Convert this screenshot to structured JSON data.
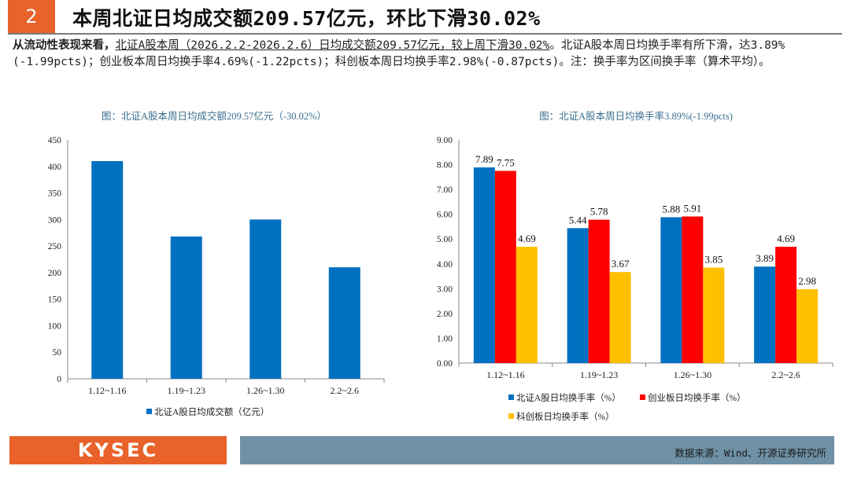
{
  "header": {
    "number": "2",
    "title": "本周北证日均成交额209.57亿元，环比下滑30.02%"
  },
  "summary": {
    "lead": "从流动性表现来看，",
    "underlined": "北证A股本周（2026.2.2-2026.2.6）日均成交额209.57亿元，较上周下滑30.02%",
    "rest": "。北证A股本周日均换手率有所下滑，达3.89%(-1.99pcts)；创业板本周日均换手率4.69%(-1.22pcts)；科创板本周日均换手率2.98%(-0.87pcts)。注：换手率为区间换手率（算术平均）。"
  },
  "colors": {
    "accent": "#e8622a",
    "blue": "#0070c0",
    "red": "#ff0000",
    "yellow": "#ffc000",
    "footer": "#6f91a5"
  },
  "chart_data": [
    {
      "type": "bar",
      "title": "图：北证A股本周日均成交额209.57亿元（-30.02%）",
      "categories": [
        "1.12~1.16",
        "1.19~1.23",
        "1.26~1.30",
        "2.2~2.6"
      ],
      "series": [
        {
          "name": "北证A股日均成交额（亿元）",
          "values": [
            410,
            268,
            300,
            210
          ]
        }
      ],
      "ylim": [
        0,
        450
      ],
      "yticks": [
        "0",
        "50",
        "100",
        "150",
        "200",
        "250",
        "300",
        "350",
        "400",
        "450"
      ],
      "legend": "bottom"
    },
    {
      "type": "bar",
      "title": "图：北证A股本周日均换手率3.89%(-1.99pcts)",
      "categories": [
        "1.12~1.16",
        "1.19~1.23",
        "1.26~1.30",
        "2.2~2.6"
      ],
      "series": [
        {
          "name": "北证A股日均换手率（%）",
          "values": [
            7.89,
            5.44,
            5.88,
            3.89
          ],
          "labels": [
            "7.89",
            "5.44",
            "5.88",
            "3.89"
          ]
        },
        {
          "name": "创业板日均换手率（%）",
          "values": [
            7.75,
            5.78,
            5.91,
            4.69
          ],
          "labels": [
            "7.75",
            "5.78",
            "5.91",
            "4.69"
          ]
        },
        {
          "name": "科创板日均换手率（%）",
          "values": [
            4.69,
            3.67,
            3.85,
            2.98
          ],
          "labels": [
            "4.69",
            "3.67",
            "3.85",
            "2.98"
          ]
        }
      ],
      "ylim": [
        0,
        9
      ],
      "yticks": [
        "0.00",
        "1.00",
        "2.00",
        "3.00",
        "4.00",
        "5.00",
        "6.00",
        "7.00",
        "8.00",
        "9.00"
      ],
      "legend": "bottom"
    }
  ],
  "footer": {
    "logo": "KYSEC",
    "source": "数据来源：Wind、开源证券研究所"
  }
}
